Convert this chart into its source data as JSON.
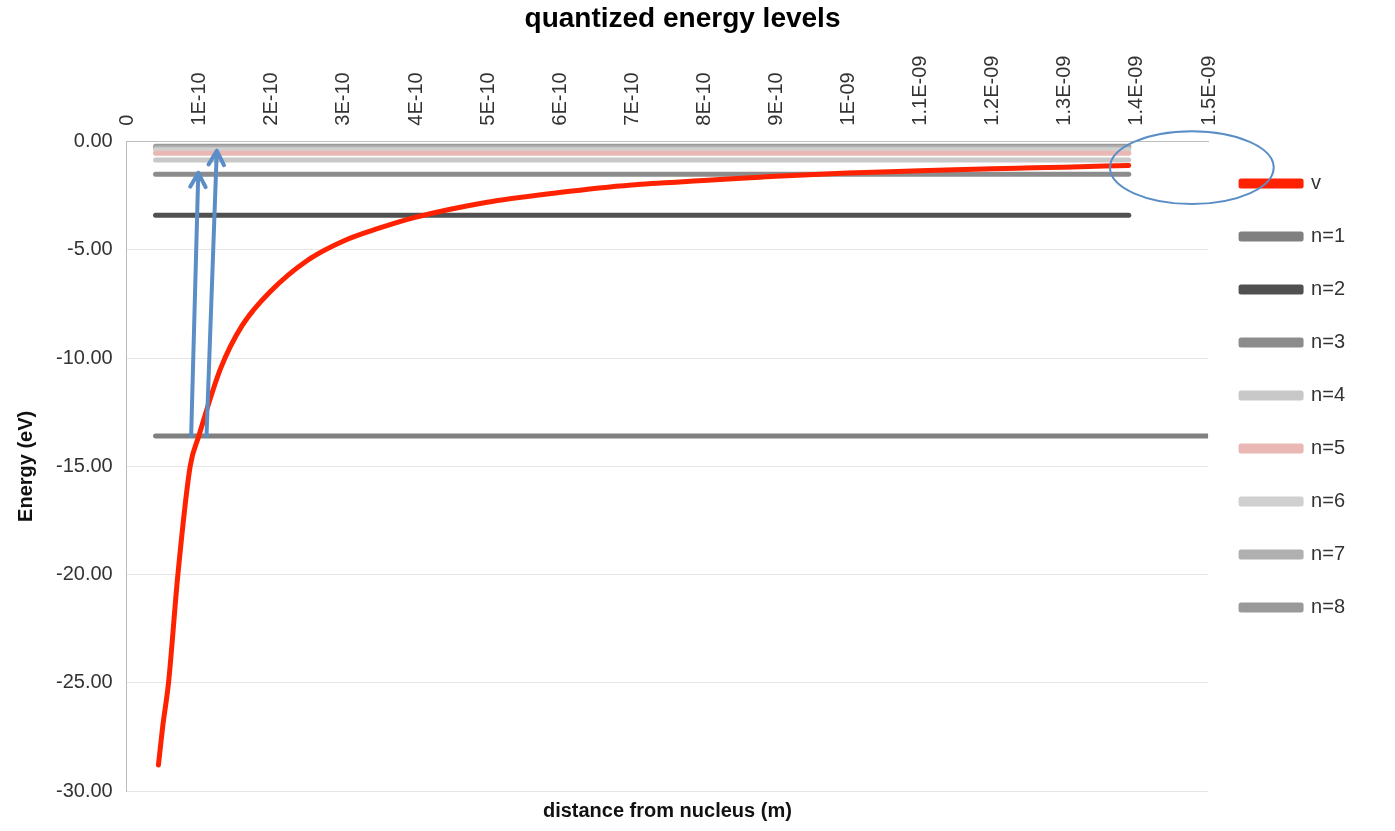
{
  "chart_data": {
    "type": "line",
    "title": "quantized energy levels",
    "xlabel": "distance from nucleus (m)",
    "ylabel": "Energy (eV)",
    "xlim": [
      0,
      1.5e-09
    ],
    "ylim": [
      -30,
      0
    ],
    "xticks": [
      0,
      {
        "value": 1e-10,
        "label": "1E-10"
      },
      {
        "value": 2e-10,
        "label": "2E-10"
      },
      {
        "value": 3e-10,
        "label": "3E-10"
      },
      {
        "value": 4e-10,
        "label": "4E-10"
      },
      {
        "value": 5e-10,
        "label": "5E-10"
      },
      {
        "value": 6e-10,
        "label": "6E-10"
      },
      {
        "value": 7e-10,
        "label": "7E-10"
      },
      {
        "value": 8e-10,
        "label": "8E-10"
      },
      {
        "value": 9e-10,
        "label": "9E-10"
      },
      {
        "value": 1e-09,
        "label": "1E-09"
      },
      {
        "value": 1.1e-09,
        "label": "1.1E-09"
      },
      {
        "value": 1.2e-09,
        "label": "1.2E-09"
      },
      {
        "value": 1.3e-09,
        "label": "1.3E-09"
      },
      {
        "value": 1.4e-09,
        "label": "1.4E-09"
      },
      {
        "value": 1.5e-09,
        "label": "1.5E-09"
      }
    ],
    "yticks": [
      {
        "value": -30,
        "label": "-30.00"
      },
      {
        "value": -25,
        "label": "-25.00"
      },
      {
        "value": -20,
        "label": "-20.00"
      },
      {
        "value": -15,
        "label": "-15.00"
      },
      {
        "value": -10,
        "label": "-10.00"
      },
      {
        "value": -5,
        "label": "-5.00"
      },
      {
        "value": 0,
        "label": "0.00"
      }
    ],
    "grid": "y",
    "legend": "right",
    "marker": "none",
    "line_style": "solid",
    "series": [
      {
        "name": "v",
        "color": "#ff2200",
        "x": [
          4.4e-11,
          5e-11,
          5.8e-11,
          7.1e-11,
          8.8e-11,
          1e-10,
          1.3e-10,
          1.6e-10,
          2e-10,
          2.5e-10,
          3e-10,
          3.5e-10,
          4e-10,
          5e-10,
          6e-10,
          7e-10,
          8e-10,
          9e-10,
          1e-09,
          1.1e-09,
          1.2e-09,
          1.3e-09,
          1.39e-09
        ],
        "values": [
          -28.8,
          -27,
          -25,
          -20,
          -15,
          -13.6,
          -10.5,
          -8.5,
          -6.9,
          -5.5,
          -4.6,
          -4,
          -3.5,
          -2.8,
          -2.35,
          -2,
          -1.8,
          -1.6,
          -1.45,
          -1.35,
          -1.25,
          -1.18,
          -1.1
        ]
      },
      {
        "name": "n=1",
        "color": "#808080",
        "x": [
          4e-11,
          1.5e-09
        ],
        "values": [
          -13.6,
          -13.6
        ]
      },
      {
        "name": "n=2",
        "color": "#505050",
        "x": [
          4e-11,
          1.39e-09
        ],
        "values": [
          -3.4,
          -3.4
        ]
      },
      {
        "name": "n=3",
        "color": "#8c8c8c",
        "x": [
          4e-11,
          1.39e-09
        ],
        "values": [
          -1.51,
          -1.51
        ]
      },
      {
        "name": "n=4",
        "color": "#c8c8c8",
        "x": [
          4e-11,
          1.39e-09
        ],
        "values": [
          -0.85,
          -0.85
        ]
      },
      {
        "name": "n=5",
        "color": "#eab8b4",
        "x": [
          4e-11,
          1.39e-09
        ],
        "values": [
          -0.54,
          -0.54
        ]
      },
      {
        "name": "n=6",
        "color": "#d0d0d0",
        "x": [
          4e-11,
          1.39e-09
        ],
        "values": [
          -0.38,
          -0.38
        ]
      },
      {
        "name": "n=7",
        "color": "#b0b0b0",
        "x": [
          4e-11,
          1.39e-09
        ],
        "values": [
          -0.28,
          -0.28
        ]
      },
      {
        "name": "n=8",
        "color": "#999999",
        "x": [
          4e-11,
          1.39e-09
        ],
        "values": [
          -0.21,
          -0.21
        ]
      }
    ]
  }
}
